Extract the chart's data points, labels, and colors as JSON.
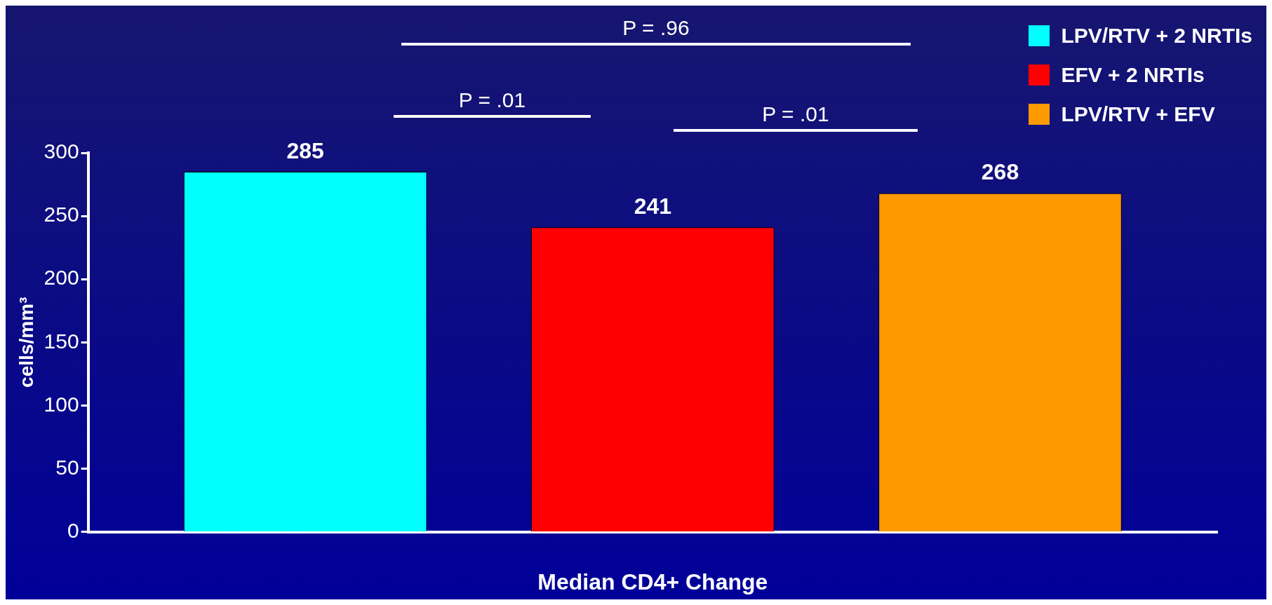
{
  "chart_data": {
    "type": "bar",
    "xlabel": "Median CD4+ Change",
    "ylabel": "cells/mm³",
    "categories": [
      null
    ],
    "series": [
      {
        "name": "LPV/RTV + 2 NRTIs",
        "color": "#00ffff",
        "values": [
          285
        ]
      },
      {
        "name": "EFV + 2 NRTIs",
        "color": "#ff0000",
        "values": [
          241
        ]
      },
      {
        "name": "LPV/RTV + EFV",
        "color": "#ff9900",
        "values": [
          268
        ]
      }
    ],
    "ylim": [
      0,
      300
    ],
    "yticks": [
      0,
      50,
      100,
      150,
      200,
      250,
      300
    ],
    "grid": false,
    "legend": "top right",
    "data_labels": true,
    "annotations": [
      "P = .96",
      "P = .01",
      "P = .01"
    ]
  }
}
